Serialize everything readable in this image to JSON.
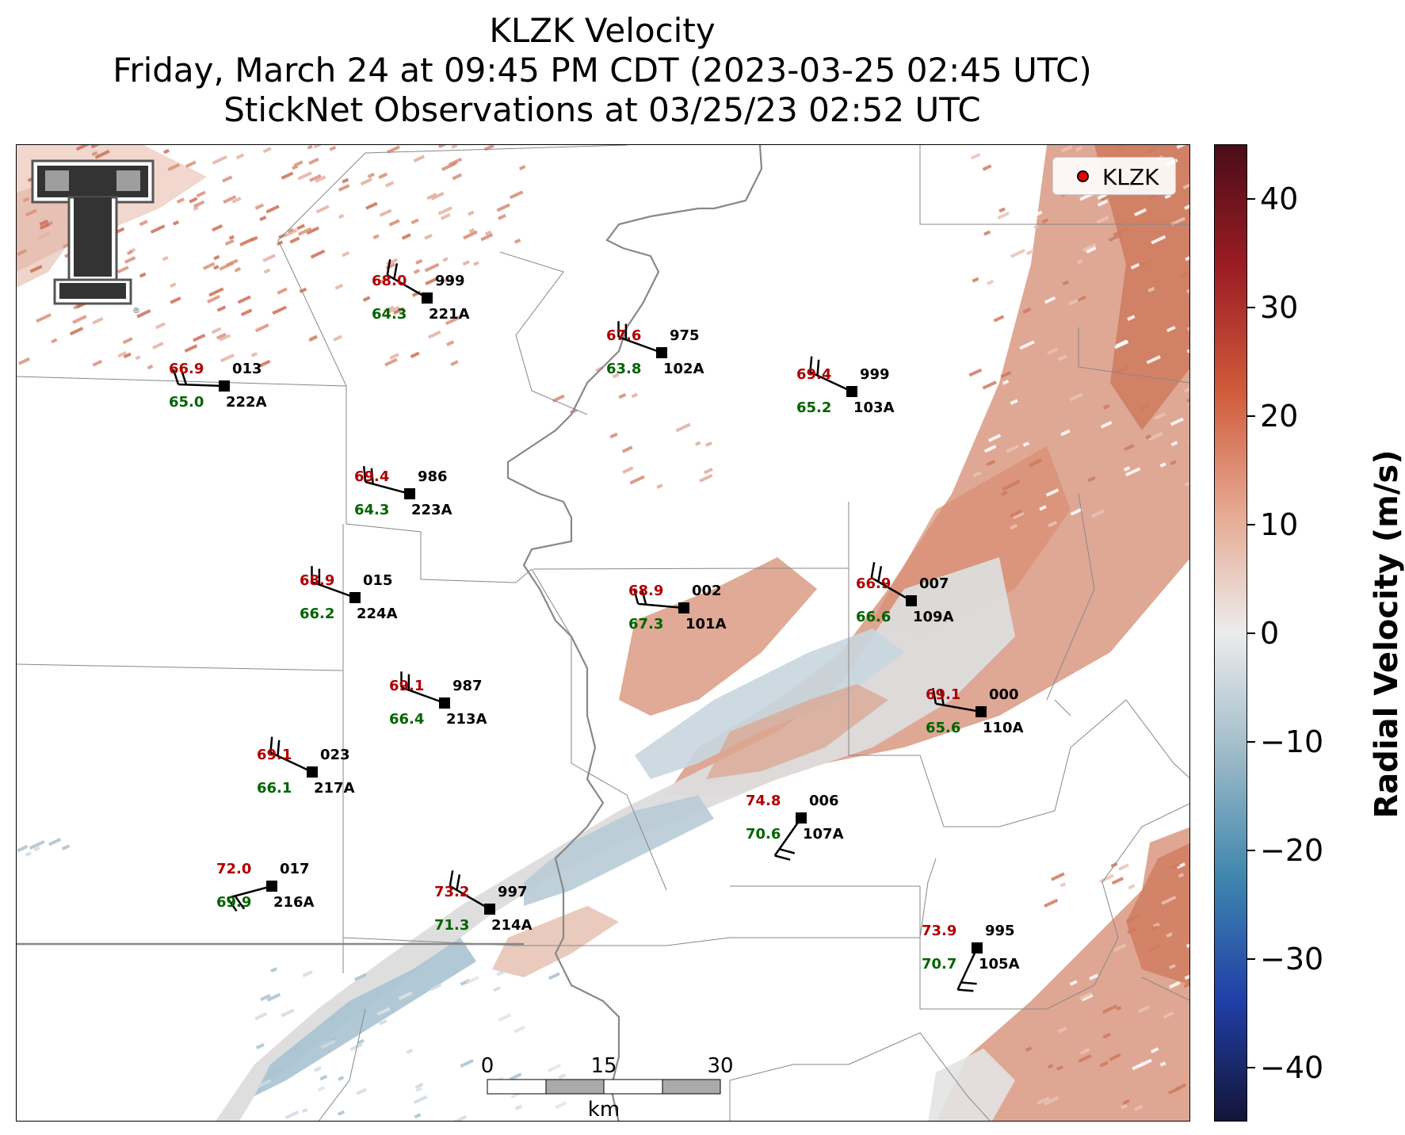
{
  "title": {
    "line1": "KLZK Velocity",
    "line2": "Friday, March 24 at 09:45 PM CDT (2023-03-25 02:45 UTC)",
    "line3": "StickNet Observations at 03/25/23 02:52 UTC"
  },
  "legend": {
    "label": "KLZK",
    "marker_color": "#ee0000"
  },
  "logo": {
    "name": "Texas Tech Double T",
    "text": "T"
  },
  "colorbar": {
    "label": "Radial Velocity (m/s)",
    "range": [
      -45,
      45
    ],
    "ticks": [
      "40",
      "30",
      "20",
      "10",
      "0",
      "−10",
      "−20",
      "−30",
      "−40"
    ],
    "tick_values": [
      40,
      30,
      20,
      10,
      0,
      -10,
      -20,
      -30,
      -40
    ],
    "colors": [
      "#4a0d18",
      "#9c1c24",
      "#cf5a3a",
      "#e6a890",
      "#ececec",
      "#9dbac8",
      "#3f86ae",
      "#2040a8",
      "#141438"
    ]
  },
  "scalebar": {
    "ticks": [
      "0",
      "15",
      "30"
    ],
    "unit": "km"
  },
  "stations": [
    {
      "id": "221A",
      "temp": "68.0",
      "dew": "64.3",
      "pres": "999"
    },
    {
      "id": "102A",
      "temp": "67.6",
      "dew": "63.8",
      "pres": "975"
    },
    {
      "id": "222A",
      "temp": "66.9",
      "dew": "65.0",
      "pres": "013"
    },
    {
      "id": "103A",
      "temp": "69.4",
      "dew": "65.2",
      "pres": "999"
    },
    {
      "id": "223A",
      "temp": "69.4",
      "dew": "64.3",
      "pres": "986"
    },
    {
      "id": "224A",
      "temp": "68.9",
      "dew": "66.2",
      "pres": "015"
    },
    {
      "id": "101A",
      "temp": "68.9",
      "dew": "67.3",
      "pres": "002"
    },
    {
      "id": "109A",
      "temp": "66.9",
      "dew": "66.6",
      "pres": "007"
    },
    {
      "id": "213A",
      "temp": "69.1",
      "dew": "66.4",
      "pres": "987"
    },
    {
      "id": "110A",
      "temp": "69.1",
      "dew": "65.6",
      "pres": "000"
    },
    {
      "id": "217A",
      "temp": "69.1",
      "dew": "66.1",
      "pres": "023"
    },
    {
      "id": "107A",
      "temp": "74.8",
      "dew": "70.6",
      "pres": "006"
    },
    {
      "id": "216A",
      "temp": "72.0",
      "dew": "69.9",
      "pres": "017"
    },
    {
      "id": "214A",
      "temp": "73.2",
      "dew": "71.3",
      "pres": "997"
    },
    {
      "id": "105A",
      "temp": "73.9",
      "dew": "70.7",
      "pres": "995"
    }
  ]
}
